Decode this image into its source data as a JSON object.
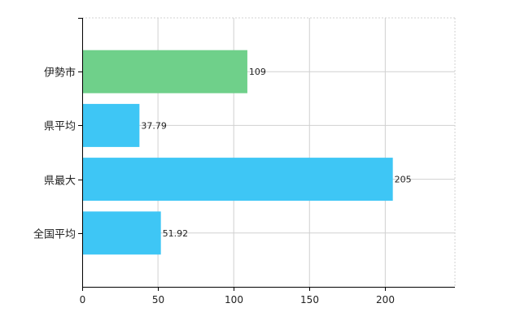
{
  "chart_data": {
    "type": "bar",
    "orientation": "horizontal",
    "categories": [
      "伊勢市",
      "県平均",
      "県最大",
      "全国平均"
    ],
    "values": [
      109,
      37.79,
      205,
      51.92
    ],
    "value_labels": [
      "109",
      "37.79",
      "205",
      "51.92"
    ],
    "bar_colors": [
      "#6fd08a",
      "#3ec6f5",
      "#3ec6f5",
      "#3ec6f5"
    ],
    "xlim": [
      0,
      246
    ],
    "xticks": [
      0,
      50,
      100,
      150,
      200
    ],
    "xtick_labels": [
      "0",
      "50",
      "100",
      "150",
      "200"
    ],
    "grid": true,
    "title": "",
    "xlabel": "",
    "ylabel": ""
  }
}
